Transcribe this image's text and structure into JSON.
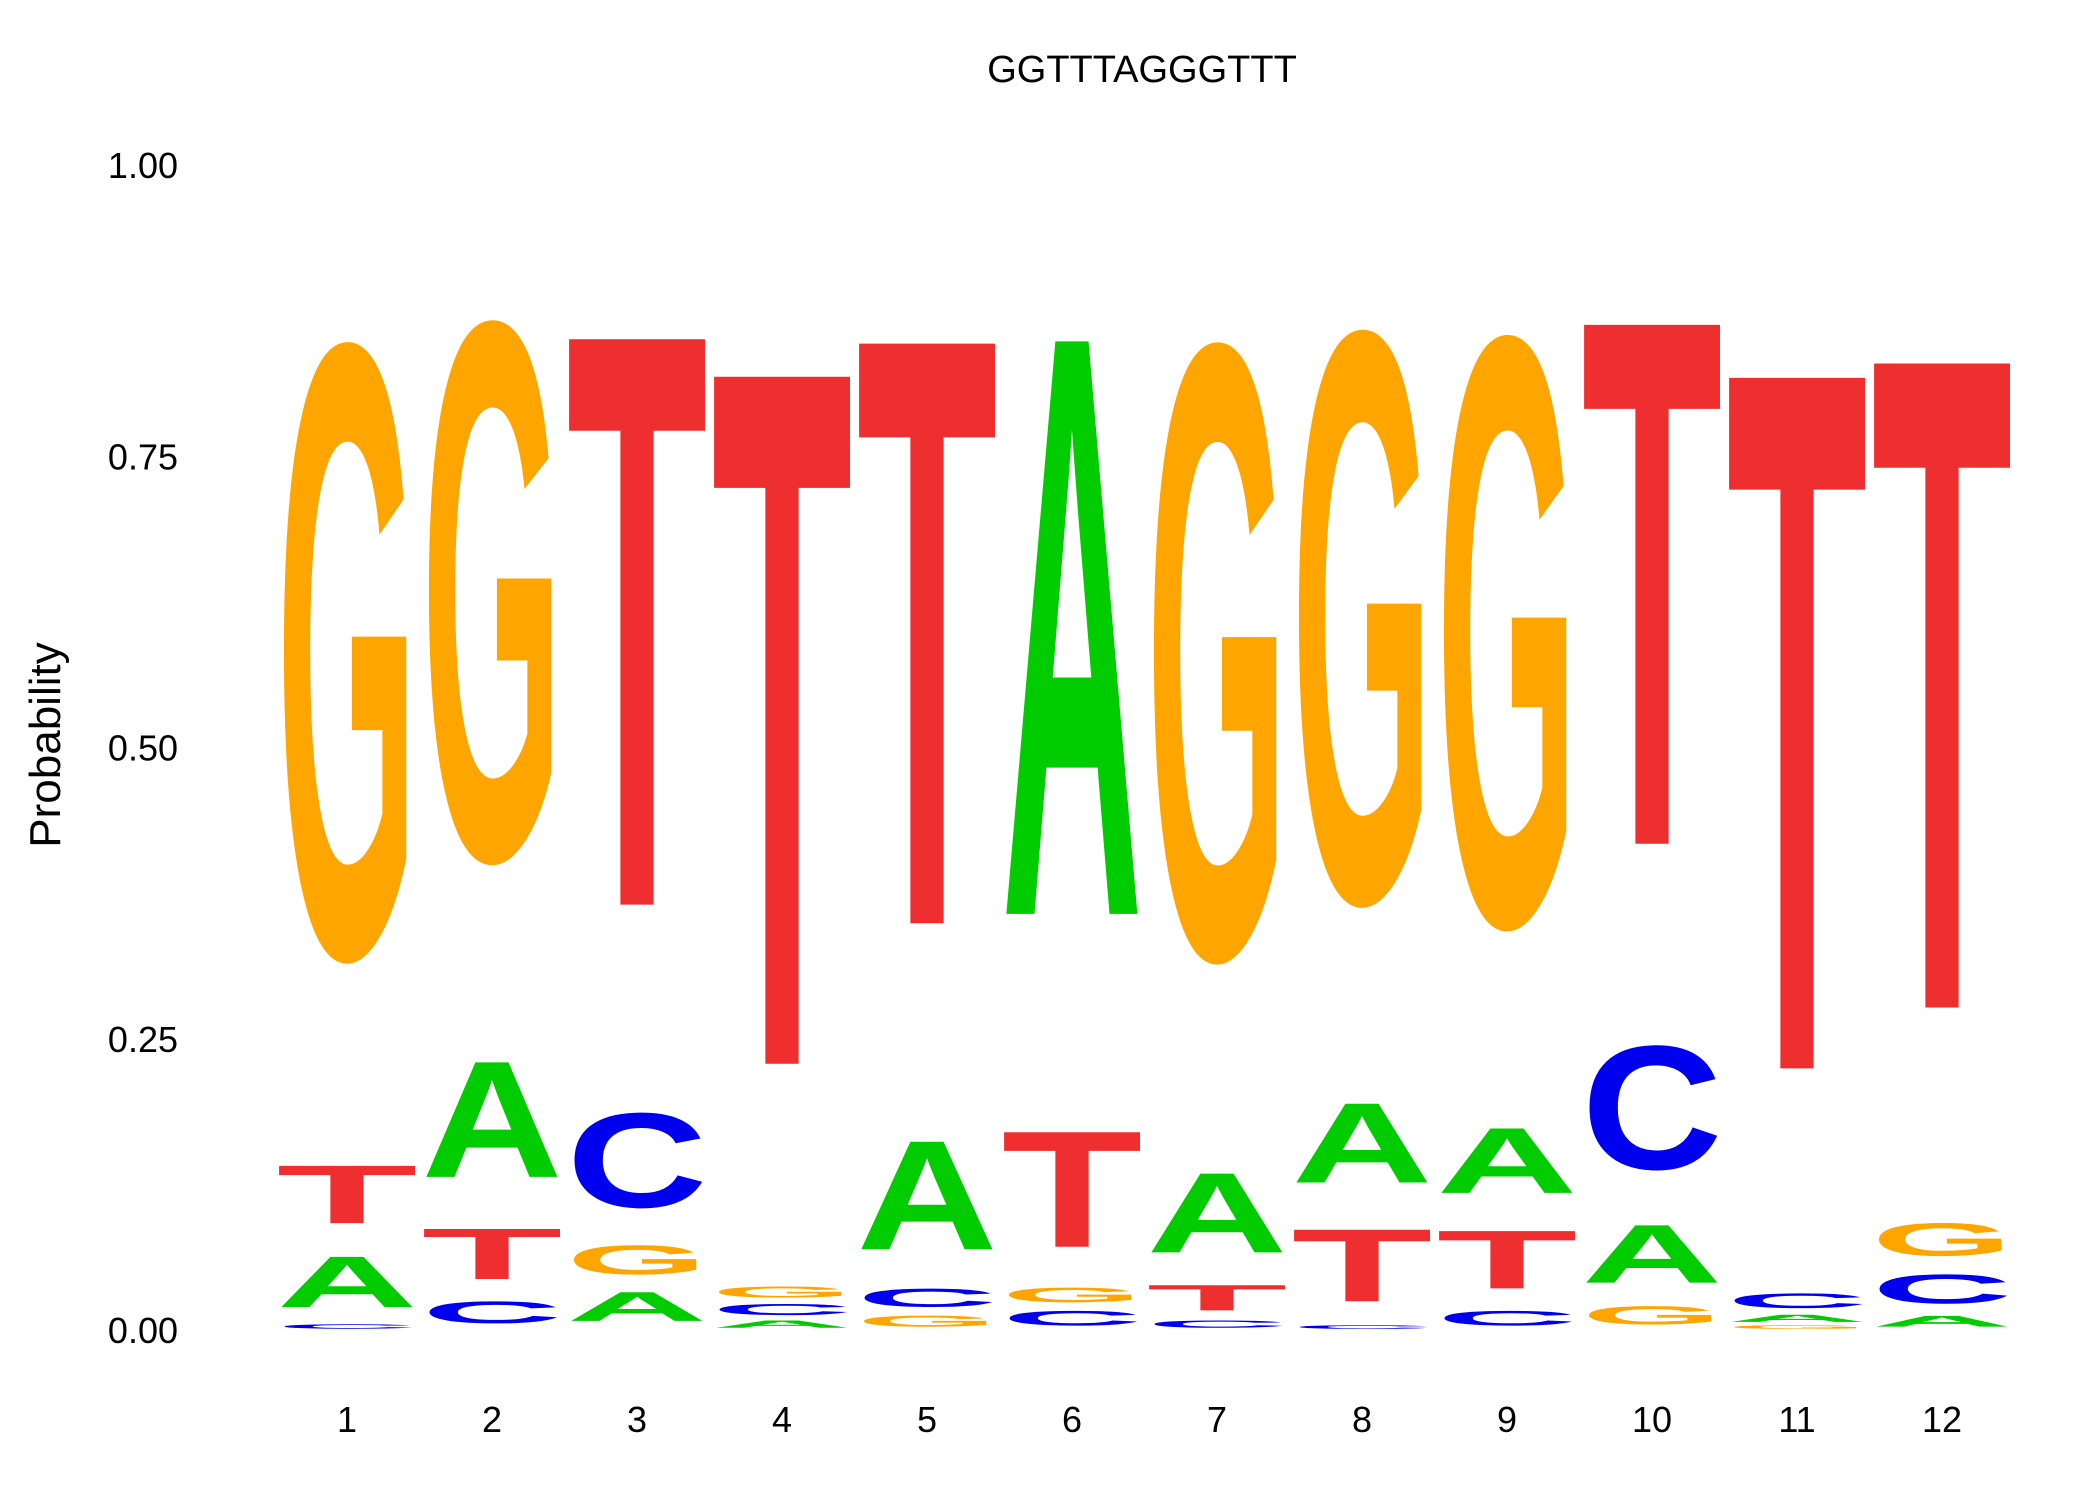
{
  "chart_data": {
    "type": "sequence-logo",
    "title": "GGTTTAGGGTTT",
    "xlabel": "",
    "ylabel": "Probability",
    "ylim": [
      0,
      1
    ],
    "yticks": [
      "0.00",
      "0.25",
      "0.50",
      "0.75",
      "1.00"
    ],
    "positions": [
      "1",
      "2",
      "3",
      "4",
      "5",
      "6",
      "7",
      "8",
      "9",
      "10",
      "11",
      "12"
    ],
    "colors": {
      "A": "#00cc00",
      "C": "#0000ee",
      "G": "#ffa500",
      "T": "#ee2e2f"
    },
    "probabilities": [
      {
        "A": 0.07,
        "C": 0.006,
        "G": 0.844,
        "T": 0.08
      },
      {
        "A": 0.16,
        "C": 0.03,
        "G": 0.74,
        "T": 0.07
      },
      {
        "A": 0.04,
        "C": 0.13,
        "G": 0.04,
        "T": 0.79
      },
      {
        "A": 0.01,
        "C": 0.015,
        "G": 0.015,
        "T": 0.96
      },
      {
        "A": 0.15,
        "C": 0.025,
        "G": 0.015,
        "T": 0.81
      },
      {
        "A": 0.8,
        "C": 0.02,
        "G": 0.02,
        "T": 0.16
      },
      {
        "A": 0.11,
        "C": 0.01,
        "G": 0.845,
        "T": 0.035
      },
      {
        "A": 0.11,
        "C": 0.005,
        "G": 0.785,
        "T": 0.1
      },
      {
        "A": 0.09,
        "C": 0.02,
        "G": 0.81,
        "T": 0.08
      },
      {
        "A": 0.08,
        "C": 0.17,
        "G": 0.025,
        "T": 0.725
      },
      {
        "A": 0.01,
        "C": 0.02,
        "G": 0.005,
        "T": 0.965
      },
      {
        "A": 0.015,
        "C": 0.04,
        "G": 0.045,
        "T": 0.9
      }
    ]
  }
}
